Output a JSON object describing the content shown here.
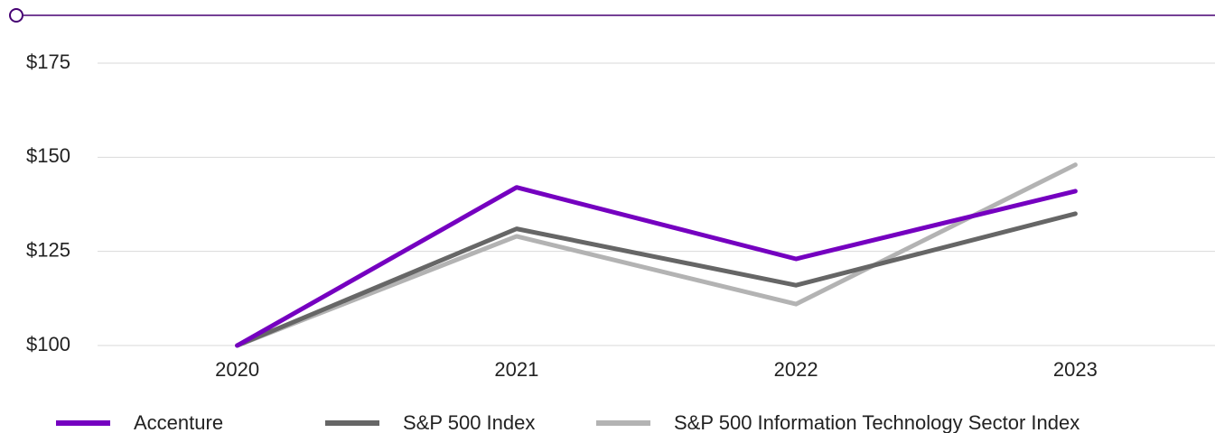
{
  "chart_data": {
    "type": "line",
    "categories": [
      "2020",
      "2021",
      "2022",
      "2023"
    ],
    "series": [
      {
        "name": "Accenture",
        "color": "#7500c0",
        "values": [
          100,
          142,
          123,
          141
        ]
      },
      {
        "name": "S&P 500 Index",
        "color": "#666666",
        "values": [
          100,
          131,
          116,
          135
        ]
      },
      {
        "name": "S&P 500 Information Technology Sector Index",
        "color": "#b3b3b3",
        "values": [
          100,
          129,
          111,
          148
        ]
      }
    ],
    "ylim": [
      100,
      175
    ],
    "yticks": [
      {
        "value": 100,
        "label": "$100"
      },
      {
        "value": 125,
        "label": "$125"
      },
      {
        "value": 150,
        "label": "$150"
      },
      {
        "value": 175,
        "label": "$175"
      }
    ],
    "grid": true,
    "legend": "bottom"
  }
}
